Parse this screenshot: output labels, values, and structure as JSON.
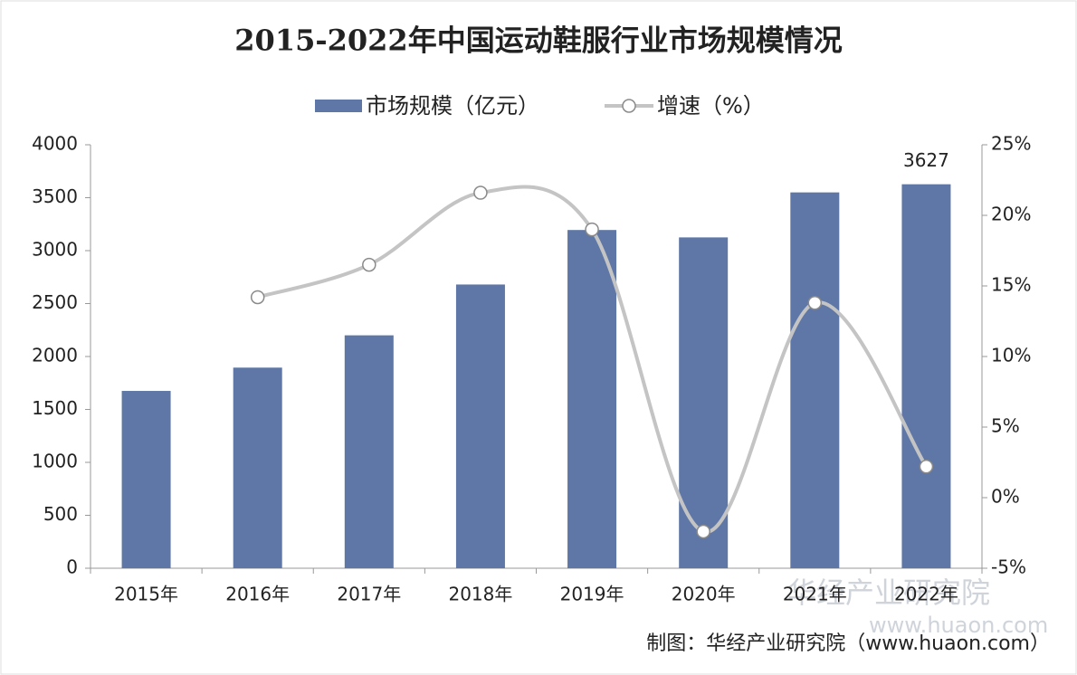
{
  "chart_data": {
    "type": "bar-line",
    "title": "2015-2022年中国运动鞋服行业市场规模情况",
    "categories": [
      "2015年",
      "2016年",
      "2017年",
      "2018年",
      "2019年",
      "2020年",
      "2021年",
      "2022年"
    ],
    "series": [
      {
        "name": "市场规模（亿元）",
        "type": "bar",
        "color": "#5f77a6",
        "values": [
          1675,
          1895,
          2200,
          2680,
          3195,
          3125,
          3550,
          3627
        ]
      },
      {
        "name": "增速（%）",
        "type": "line",
        "color": "#c4c4c4",
        "axis": "y2",
        "values": [
          null,
          14.2,
          16.5,
          21.6,
          19.0,
          -2.4,
          13.8,
          2.2
        ]
      }
    ],
    "ylim": [
      0,
      4000
    ],
    "yticks": [
      0,
      500,
      1000,
      1500,
      2000,
      2500,
      3000,
      3500,
      4000
    ],
    "y2lim": [
      -5,
      25
    ],
    "y2ticks": [
      {
        "value": -5,
        "label": "-5%"
      },
      {
        "value": 0,
        "label": "0%"
      },
      {
        "value": 5,
        "label": "5%"
      },
      {
        "value": 10,
        "label": "10%"
      },
      {
        "value": 15,
        "label": "15%"
      },
      {
        "value": 20,
        "label": "20%"
      },
      {
        "value": 25,
        "label": "25%"
      }
    ],
    "legend": "top",
    "source": "制图：华经产业研究院（www.huaon.com）",
    "watermark": [
      "华经产业研究院",
      "www.huaon.com"
    ]
  }
}
